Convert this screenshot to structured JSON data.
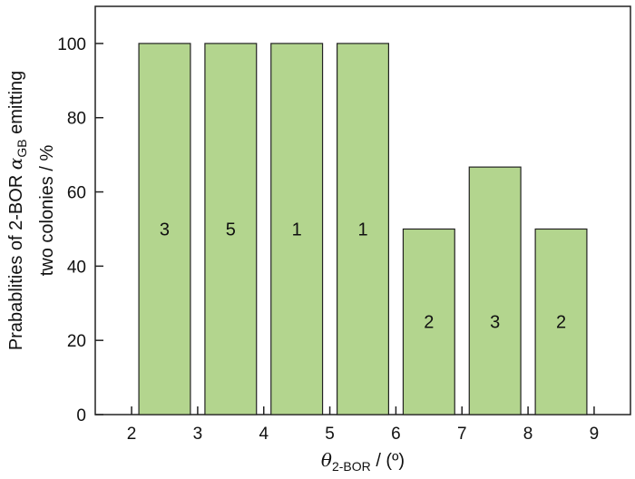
{
  "chart_data": {
    "type": "bar",
    "x_ticks": [
      "2",
      "3",
      "4",
      "5",
      "6",
      "7",
      "8",
      "9"
    ],
    "y_ticks": [
      "0",
      "20",
      "40",
      "60",
      "80",
      "100"
    ],
    "xlim": [
      2,
      9
    ],
    "ylim": [
      0,
      110
    ],
    "bars": [
      {
        "x_start": 2,
        "x_end": 3,
        "value": 100,
        "label": "3"
      },
      {
        "x_start": 3,
        "x_end": 4,
        "value": 100,
        "label": "5"
      },
      {
        "x_start": 4,
        "x_end": 5,
        "value": 100,
        "label": "1"
      },
      {
        "x_start": 5,
        "x_end": 6,
        "value": 100,
        "label": "1"
      },
      {
        "x_start": 6,
        "x_end": 7,
        "value": 50,
        "label": "2"
      },
      {
        "x_start": 7,
        "x_end": 8,
        "value": 66.7,
        "label": "3"
      },
      {
        "x_start": 8,
        "x_end": 9,
        "value": 50,
        "label": "2"
      }
    ],
    "xlabel": {
      "symbol": "θ",
      "subscript": "2-BOR",
      "rest": " / (º)"
    },
    "ylabel": {
      "line1_prefix": "Prabablities of  2-BOR ",
      "line1_symbol": "α",
      "line1_subscript": "GB",
      "line1_suffix": " emitting",
      "line2": "two colonies / %"
    },
    "bar_color": "#b3d58e",
    "bar_edge_color": "#222222"
  }
}
